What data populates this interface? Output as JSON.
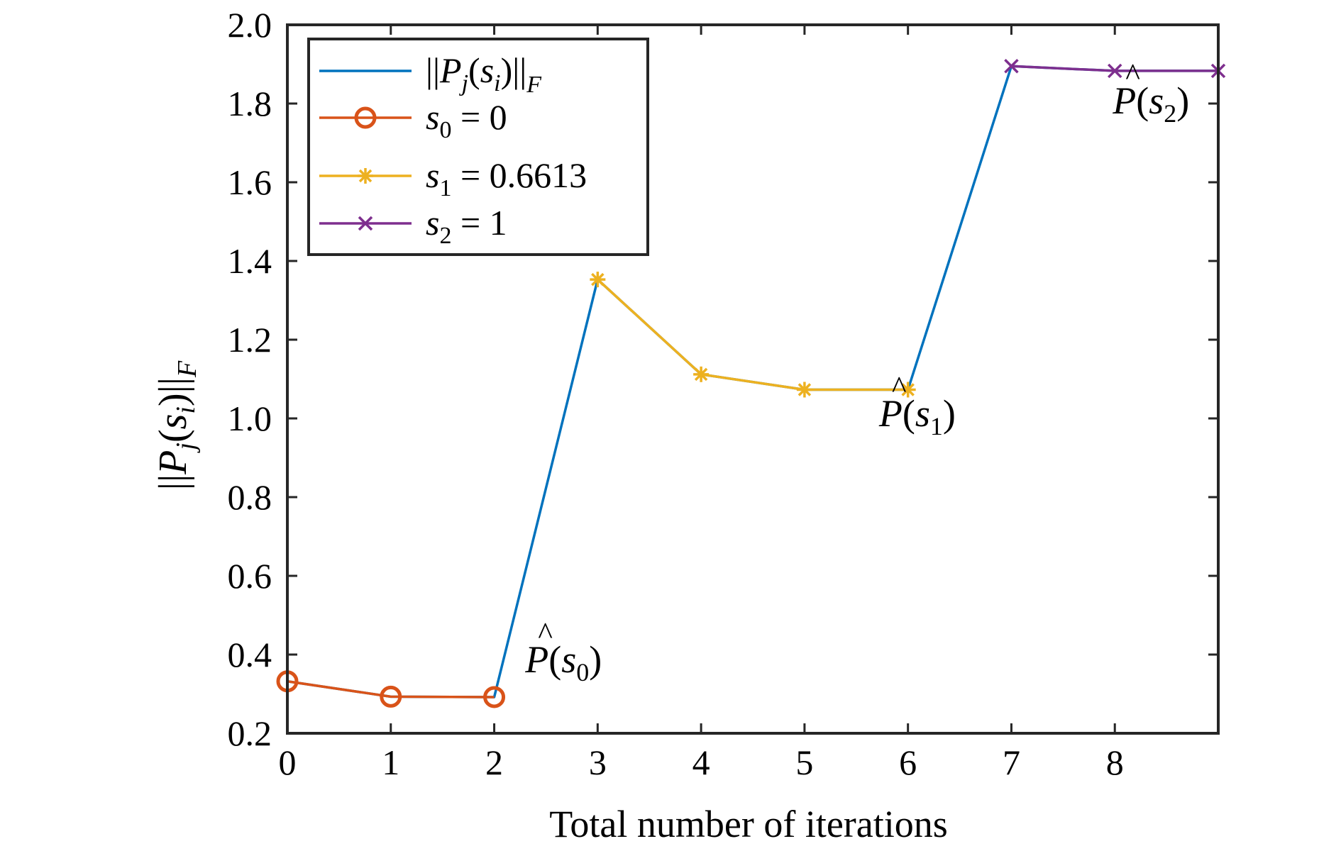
{
  "chart_data": {
    "type": "line",
    "xlabel": "Total number of iterations",
    "ylabel": {
      "prefix": "||",
      "var": "P",
      "sub": "j",
      "open": "(",
      "arg": "s",
      "arg_sub": "i",
      "close": ")||",
      "norm_sub": "F"
    },
    "xlim": [
      0,
      9
    ],
    "ylim": [
      0.2,
      2.0
    ],
    "x_ticks": [
      "0",
      "1",
      "2",
      "3",
      "4",
      "5",
      "6",
      "7",
      "8"
    ],
    "y_ticks": [
      "0.2",
      "0.4",
      "0.6",
      "0.8",
      "1.0",
      "1.2",
      "1.4",
      "1.6",
      "1.8",
      "2.0"
    ],
    "grid": false,
    "legend_position": "top-left",
    "series": [
      {
        "name": "||P_j(s_i)||_F",
        "label": {
          "prefix": "||",
          "var": "P",
          "sub": "j",
          "mid": "(",
          "arg": "s",
          "arg_sub": "i",
          "suffix": ")||",
          "suffix_sub": "F"
        },
        "color": "#0072BD",
        "marker": "none",
        "x": [
          0,
          1,
          2,
          3,
          4,
          5,
          6,
          7,
          8,
          9
        ],
        "y": [
          0.332,
          0.293,
          0.292,
          1.353,
          1.112,
          1.073,
          1.073,
          1.895,
          1.883,
          1.883
        ]
      },
      {
        "name": "s_0 = 0",
        "label": {
          "var": "s",
          "sub": "0",
          "rest": " = 0"
        },
        "color": "#D95319",
        "marker": "circle",
        "x": [
          0,
          1,
          2
        ],
        "y": [
          0.332,
          0.293,
          0.292
        ]
      },
      {
        "name": "s_1 = 0.6613",
        "label": {
          "var": "s",
          "sub": "1",
          "rest": " = 0.6613"
        },
        "color": "#EDB120",
        "marker": "star",
        "x": [
          3,
          4,
          5,
          6
        ],
        "y": [
          1.353,
          1.112,
          1.073,
          1.073
        ]
      },
      {
        "name": "s_2 = 1",
        "label": {
          "var": "s",
          "sub": "2",
          "rest": " = 1"
        },
        "color": "#7E2F8E",
        "marker": "x",
        "x": [
          7,
          8,
          9
        ],
        "y": [
          1.895,
          1.883,
          1.883
        ]
      }
    ],
    "annotations": [
      {
        "hat": "^",
        "var": "P",
        "open": "(",
        "arg": "s",
        "sub": "0",
        "close": ")",
        "x": 2.3,
        "y": 0.355
      },
      {
        "hat": "^",
        "var": "P",
        "open": "(",
        "arg": "s",
        "sub": "1",
        "close": ")",
        "x": 5.72,
        "y": 0.98
      },
      {
        "hat": "^",
        "var": "P",
        "open": "(",
        "arg": "s",
        "sub": "2",
        "close": ")",
        "x": 7.98,
        "y": 1.775
      }
    ]
  }
}
